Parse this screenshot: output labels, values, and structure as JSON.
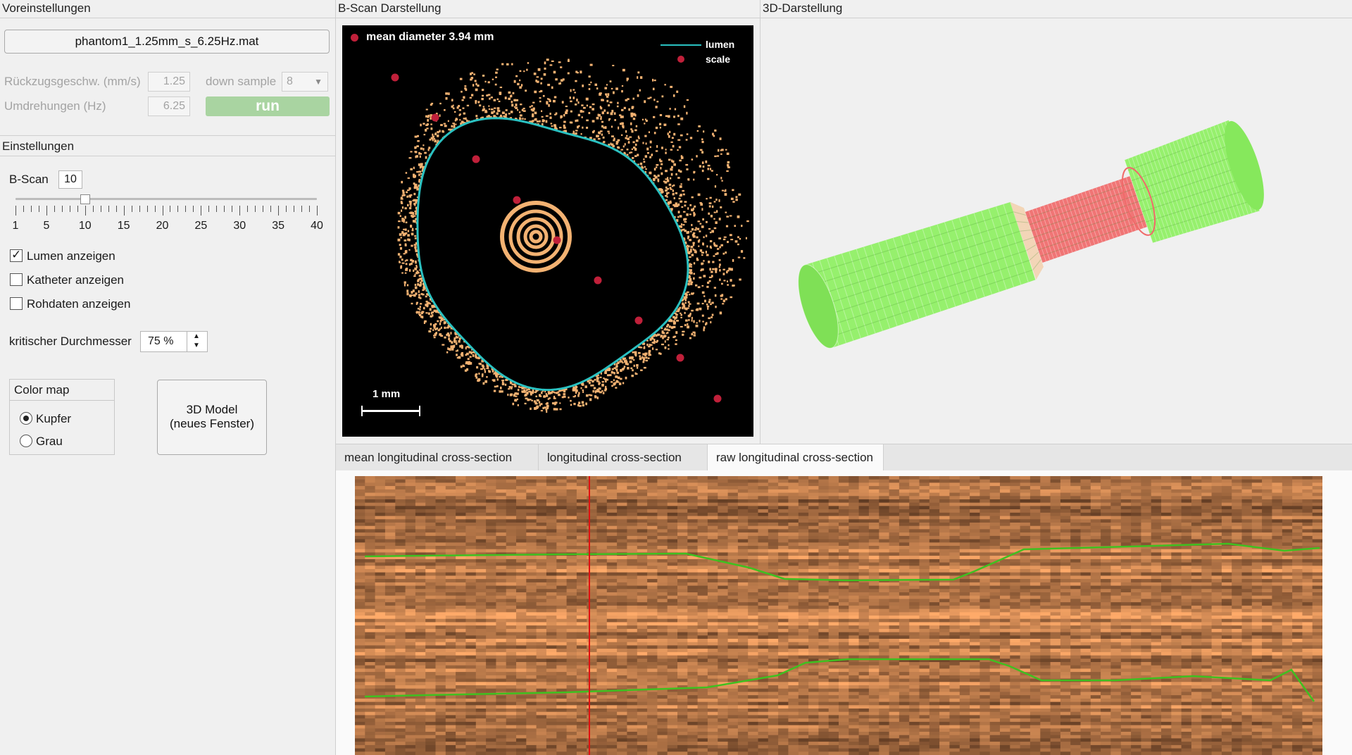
{
  "sections": {
    "presets": "Voreinstellungen",
    "bscan_view": "B-Scan Darstellung",
    "view3d": "3D-Darstellung",
    "settings": "Einstellungen"
  },
  "presets": {
    "file_button": "phantom1_1.25mm_s_6.25Hz.mat",
    "pullback_label": "Rückzugsgeschw. (mm/s)",
    "pullback_value": "1.25",
    "downsample_label": "down sample",
    "downsample_value": "8",
    "rotations_label": "Umdrehungen (Hz)",
    "rotations_value": "6.25",
    "run_label": "run"
  },
  "settings": {
    "bscan_label": "B-Scan",
    "bscan_value": "10",
    "slider_ticks": [
      "1",
      "5",
      "10",
      "15",
      "20",
      "25",
      "30",
      "35",
      "40"
    ],
    "slider_min": 1,
    "slider_max": 40,
    "slider_current": 10,
    "show_lumen": "Lumen anzeigen",
    "show_lumen_checked": true,
    "show_catheter": "Katheter anzeigen",
    "show_catheter_checked": false,
    "show_raw": "Rohdaten anzeigen",
    "show_raw_checked": false,
    "critical_label": "kritischer Durchmesser",
    "critical_value": "75 %",
    "colormap_title": "Color map",
    "colormap_options": [
      "Kupfer",
      "Grau"
    ],
    "colormap_selected": "Kupfer",
    "model_button_line1": "3D Model",
    "model_button_line2": "(neues Fenster)"
  },
  "bscan": {
    "mean_diameter": "mean diameter 3.94 mm",
    "legend_lumen": "lumen",
    "legend_scale": "scale",
    "scale_bar": "1 mm"
  },
  "tabs": [
    {
      "label": "mean longitudinal cross-section",
      "active": false
    },
    {
      "label": "longitudinal cross-section",
      "active": false
    },
    {
      "label": "raw longitudinal cross-section",
      "active": true
    }
  ],
  "colors": {
    "lumen": "#2ac1c1",
    "scale_points": "#c0203a",
    "tissue": "#f3b272",
    "model_healthy": "#8ef062",
    "model_critical": "#f06a6a",
    "cut_marker": "#e01010",
    "lumen_line": "#3fc020"
  }
}
